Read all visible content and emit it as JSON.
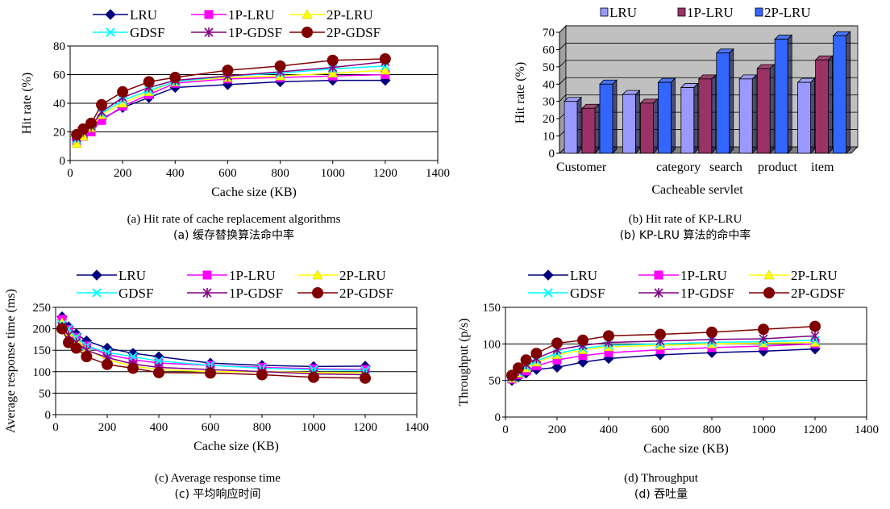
{
  "chart_data": [
    {
      "id": "a",
      "type": "line",
      "xlabel": "Cache size (KB)",
      "ylabel": "Hit rate (%)",
      "xlim": [
        0,
        1400
      ],
      "ylim": [
        0,
        80
      ],
      "xticks": [
        0,
        200,
        400,
        600,
        800,
        1000,
        1200,
        1400
      ],
      "yticks": [
        0,
        20,
        40,
        60,
        80
      ],
      "grid": "horizontal",
      "legend": "top",
      "x": [
        25,
        50,
        80,
        120,
        200,
        300,
        400,
        600,
        800,
        1000,
        1200
      ],
      "series": [
        {
          "name": "LRU",
          "color": "#000080",
          "marker": "diamond",
          "values": [
            15,
            19,
            23,
            29,
            37,
            44,
            51,
            53,
            55,
            56,
            56
          ]
        },
        {
          "name": "1P-LRU",
          "color": "#ff00ff",
          "marker": "square",
          "values": [
            14,
            17,
            20,
            28,
            38,
            46,
            54,
            57,
            58,
            59,
            60
          ]
        },
        {
          "name": "2P-LRU",
          "color": "#ffff00",
          "marker": "triangle",
          "values": [
            12,
            17,
            23,
            32,
            40,
            48,
            55,
            58,
            59,
            61,
            63
          ]
        },
        {
          "name": "GDSF",
          "color": "#00ffff",
          "marker": "x",
          "values": [
            15,
            20,
            25,
            33,
            42,
            49,
            55,
            59,
            61,
            64,
            66
          ]
        },
        {
          "name": "1P-GDSF",
          "color": "#800080",
          "marker": "star",
          "values": [
            16,
            20,
            24,
            34,
            44,
            51,
            56,
            59,
            62,
            65,
            69
          ]
        },
        {
          "name": "2P-GDSF",
          "color": "#800000",
          "marker": "circle",
          "values": [
            18,
            22,
            26,
            39,
            48,
            55,
            58,
            63,
            66,
            70,
            71
          ]
        }
      ],
      "caption_en": "(a) Hit rate of cache replacement algorithms",
      "caption_zh": "(a)  缓存替换算法命中率"
    },
    {
      "id": "b",
      "type": "bar",
      "categories": [
        "Customer",
        "category",
        "search",
        "product",
        "item"
      ],
      "xlabel": "Cacheable servlet",
      "ylabel": "Hit rate (%)",
      "ylim": [
        0,
        70
      ],
      "yticks": [
        0,
        10,
        20,
        30,
        40,
        50,
        60,
        70
      ],
      "grid": "horizontal",
      "legend": "top",
      "series": [
        {
          "name": "LRU",
          "color": "#9999ff",
          "values": [
            30,
            34,
            38,
            43,
            41
          ]
        },
        {
          "name": "1P-LRU",
          "color": "#993366",
          "values": [
            26,
            29,
            43,
            49,
            54
          ]
        },
        {
          "name": "2P-LRU",
          "color": "#3366ff",
          "values": [
            40,
            41,
            58,
            66,
            68
          ]
        }
      ],
      "caption_en": "(b) Hit rate of KP-LRU",
      "caption_zh": "(b) KP-LRU 算法的命中率"
    },
    {
      "id": "c",
      "type": "line",
      "xlabel": "Cache size (KB)",
      "ylabel": "Average response time (ms)",
      "xlim": [
        0,
        1400
      ],
      "ylim": [
        0,
        250
      ],
      "xticks": [
        0,
        200,
        400,
        600,
        800,
        1000,
        1200,
        1400
      ],
      "yticks": [
        0,
        50,
        100,
        150,
        200,
        250
      ],
      "grid": "horizontal",
      "legend": "top",
      "x": [
        25,
        50,
        80,
        120,
        200,
        300,
        400,
        600,
        800,
        1000,
        1200
      ],
      "series": [
        {
          "name": "LRU",
          "color": "#000080",
          "marker": "diamond",
          "values": [
            228,
            205,
            188,
            172,
            155,
            143,
            135,
            120,
            115,
            112,
            113
          ]
        },
        {
          "name": "1P-LRU",
          "color": "#ff00ff",
          "marker": "square",
          "values": [
            222,
            198,
            180,
            160,
            140,
            128,
            120,
            115,
            110,
            107,
            105
          ]
        },
        {
          "name": "2P-LRU",
          "color": "#ffff00",
          "marker": "triangle",
          "values": [
            215,
            193,
            175,
            152,
            128,
            113,
            105,
            100,
            100,
            98,
            97
          ]
        },
        {
          "name": "GDSF",
          "color": "#00ffff",
          "marker": "x",
          "values": [
            210,
            200,
            180,
            160,
            145,
            135,
            125,
            115,
            108,
            105,
            103
          ]
        },
        {
          "name": "1P-GDSF",
          "color": "#800080",
          "marker": "star",
          "values": [
            205,
            185,
            168,
            150,
            133,
            118,
            110,
            105,
            100,
            95,
            93
          ]
        },
        {
          "name": "2P-GDSF",
          "color": "#800000",
          "marker": "circle",
          "values": [
            200,
            168,
            155,
            135,
            117,
            108,
            98,
            97,
            93,
            87,
            85
          ]
        }
      ],
      "caption_en": "(c) Average response time",
      "caption_zh": "(c)  平均响应时间"
    },
    {
      "id": "d",
      "type": "line",
      "xlabel": "Cache size (KB)",
      "ylabel": "Throughput (p/s)",
      "xlim": [
        0,
        1400
      ],
      "ylim": [
        0,
        150
      ],
      "xticks": [
        0,
        200,
        400,
        600,
        800,
        1000,
        1200,
        1400
      ],
      "yticks": [
        0,
        50,
        100,
        150
      ],
      "grid": "horizontal",
      "legend": "top",
      "x": [
        25,
        50,
        80,
        120,
        200,
        300,
        400,
        600,
        800,
        1000,
        1200
      ],
      "series": [
        {
          "name": "LRU",
          "color": "#000080",
          "marker": "diamond",
          "values": [
            50,
            55,
            60,
            65,
            68,
            75,
            80,
            85,
            88,
            90,
            93
          ]
        },
        {
          "name": "1P-LRU",
          "color": "#ff00ff",
          "marker": "square",
          "values": [
            52,
            58,
            63,
            70,
            78,
            84,
            88,
            92,
            95,
            97,
            100
          ]
        },
        {
          "name": "2P-LRU",
          "color": "#ffff00",
          "marker": "triangle",
          "values": [
            53,
            60,
            67,
            75,
            85,
            92,
            96,
            98,
            100,
            101,
            102
          ]
        },
        {
          "name": "GDSF",
          "color": "#00ffff",
          "marker": "x",
          "values": [
            54,
            61,
            69,
            77,
            87,
            94,
            98,
            100,
            102,
            103,
            105
          ]
        },
        {
          "name": "1P-GDSF",
          "color": "#800080",
          "marker": "star",
          "values": [
            55,
            63,
            72,
            80,
            92,
            98,
            102,
            104,
            106,
            107,
            111
          ]
        },
        {
          "name": "2P-GDSF",
          "color": "#800000",
          "marker": "circle",
          "values": [
            57,
            67,
            78,
            87,
            101,
            105,
            111,
            113,
            116,
            120,
            124
          ]
        }
      ],
      "caption_en": "(d) Throughput",
      "caption_zh": "(d)  吞吐量"
    }
  ]
}
